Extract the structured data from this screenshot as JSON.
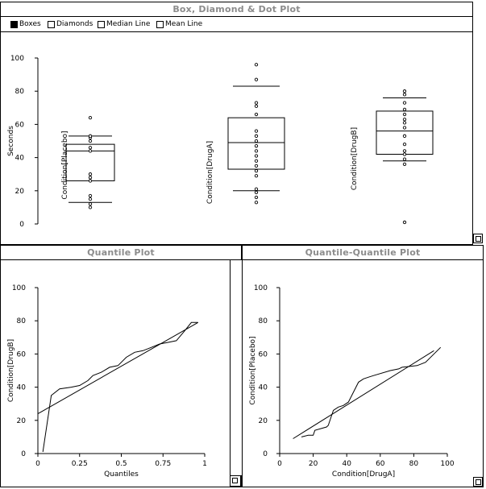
{
  "windows": {
    "top": {
      "title": "Box, Diamond & Dot Plot"
    },
    "left": {
      "title": "Quantile Plot"
    },
    "right": {
      "title": "Quantile-Quantile Plot"
    }
  },
  "toolbar": {
    "options": [
      {
        "label": "Boxes",
        "checked": true
      },
      {
        "label": "Diamonds",
        "checked": false
      },
      {
        "label": "Median Line",
        "checked": false
      },
      {
        "label": "Mean Line",
        "checked": false
      }
    ]
  },
  "chart_data": [
    {
      "type": "box",
      "ylabel": "Seconds",
      "ylim": [
        0,
        100
      ],
      "yticks": [
        0,
        20,
        40,
        60,
        80,
        100
      ],
      "groups": [
        {
          "label": "Condition[Placebo]",
          "whisker_low": 13,
          "q1": 26,
          "median": 44,
          "q3": 48,
          "whisker_high": 53,
          "points": [
            10,
            12,
            15,
            17,
            26,
            28,
            30,
            44,
            46,
            50,
            52,
            53,
            64
          ]
        },
        {
          "label": "Condition[DrugA]",
          "whisker_low": 20,
          "q1": 33,
          "median": 49,
          "q3": 64,
          "whisker_high": 83,
          "points": [
            13,
            16,
            19,
            21,
            29,
            32,
            35,
            38,
            41,
            44,
            47,
            50,
            53,
            56,
            66,
            71,
            73,
            87,
            96
          ]
        },
        {
          "label": "Condition[DrugB]",
          "whisker_low": 38,
          "q1": 42,
          "median": 56,
          "q3": 68,
          "whisker_high": 76,
          "points": [
            1,
            36,
            39,
            42,
            44,
            48,
            53,
            58,
            61,
            63,
            66,
            69,
            73,
            78,
            80
          ]
        }
      ]
    },
    {
      "type": "line",
      "xlabel": "Quantiles",
      "ylabel": "Condition[DrugB]",
      "xlim": [
        0,
        1
      ],
      "ylim": [
        0,
        100
      ],
      "xticks": [
        "0",
        "0.25",
        "0.5",
        "0.75",
        "1"
      ],
      "yticks": [
        0,
        20,
        40,
        60,
        80,
        100
      ],
      "series": [
        {
          "values": [
            [
              0.03,
              1
            ],
            [
              0.08,
              35
            ],
            [
              0.13,
              39
            ],
            [
              0.2,
              40
            ],
            [
              0.25,
              41
            ],
            [
              0.3,
              44
            ],
            [
              0.33,
              47
            ],
            [
              0.38,
              49
            ],
            [
              0.43,
              52
            ],
            [
              0.48,
              53
            ],
            [
              0.53,
              58
            ],
            [
              0.58,
              61
            ],
            [
              0.63,
              62
            ],
            [
              0.68,
              64
            ],
            [
              0.73,
              66
            ],
            [
              0.78,
              67
            ],
            [
              0.83,
              68
            ],
            [
              0.88,
              74
            ],
            [
              0.92,
              79
            ],
            [
              0.96,
              79
            ]
          ]
        },
        {
          "values": [
            [
              0,
              24
            ],
            [
              0.96,
              79
            ]
          ]
        }
      ]
    },
    {
      "type": "line",
      "xlabel": "Condition[DrugA]",
      "ylabel": "Condition[Placebo]",
      "xlim": [
        0,
        100
      ],
      "ylim": [
        0,
        100
      ],
      "xticks": [
        0,
        20,
        40,
        60,
        80,
        100
      ],
      "yticks": [
        0,
        20,
        40,
        60,
        80,
        100
      ],
      "series": [
        {
          "values": [
            [
              13,
              10
            ],
            [
              17,
              11
            ],
            [
              20,
              11
            ],
            [
              21,
              14
            ],
            [
              28,
              16
            ],
            [
              29,
              17
            ],
            [
              32,
              26
            ],
            [
              35,
              28
            ],
            [
              38,
              29
            ],
            [
              41,
              31
            ],
            [
              47,
              43
            ],
            [
              50,
              45
            ],
            [
              53,
              46
            ],
            [
              56,
              47
            ],
            [
              66,
              50
            ],
            [
              71,
              51
            ],
            [
              73,
              52
            ],
            [
              82,
              53
            ],
            [
              87,
              55
            ],
            [
              96,
              64
            ]
          ]
        },
        {
          "values": [
            [
              8,
              9
            ],
            [
              92,
              62
            ]
          ]
        }
      ]
    }
  ]
}
